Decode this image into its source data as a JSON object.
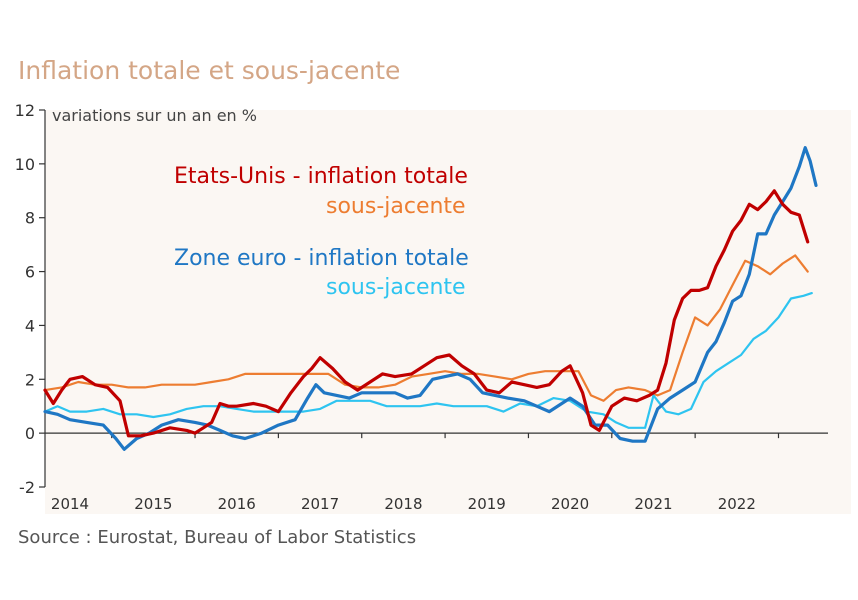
{
  "title": "Inflation totale et sous-jacente",
  "source": "Source : Eurostat, Bureau of Labor Statistics",
  "chart_data": {
    "type": "line",
    "ylabel": "variations sur un an en %",
    "ylim": [
      -2,
      12
    ],
    "yticks": [
      -2,
      0,
      2,
      4,
      6,
      8,
      10,
      12
    ],
    "xlim": [
      2013.7,
      2022.95
    ],
    "xticks": [
      {
        "label": "2014",
        "x": 2014.0
      },
      {
        "label": "2015",
        "x": 2015.0
      },
      {
        "label": "2016",
        "x": 2016.0
      },
      {
        "label": "2017",
        "x": 2017.0
      },
      {
        "label": "2018",
        "x": 2018.0
      },
      {
        "label": "2019",
        "x": 2019.0
      },
      {
        "label": "2020",
        "x": 2020.0
      },
      {
        "label": "2021",
        "x": 2021.0
      },
      {
        "label": "2022",
        "x": 2022.0
      }
    ],
    "legend": [
      {
        "text": "Etats-Unis - inflation totale",
        "color": "#c00000"
      },
      {
        "text": "sous-jacente",
        "color": "#ed7d31"
      },
      {
        "text": "Zone euro - inflation totale",
        "color": "#1f77c4"
      },
      {
        "text": "sous-jacente",
        "color": "#2ec4f0"
      }
    ],
    "series": [
      {
        "color": "#ed7d31",
        "width": 2.2,
        "points": [
          [
            2013.7,
            1.6
          ],
          [
            2013.9,
            1.7
          ],
          [
            2014.1,
            1.9
          ],
          [
            2014.3,
            1.8
          ],
          [
            2014.5,
            1.8
          ],
          [
            2014.7,
            1.7
          ],
          [
            2014.9,
            1.7
          ],
          [
            2015.1,
            1.8
          ],
          [
            2015.3,
            1.8
          ],
          [
            2015.5,
            1.8
          ],
          [
            2015.7,
            1.9
          ],
          [
            2015.9,
            2.0
          ],
          [
            2016.1,
            2.2
          ],
          [
            2016.3,
            2.2
          ],
          [
            2016.5,
            2.2
          ],
          [
            2016.7,
            2.2
          ],
          [
            2016.9,
            2.2
          ],
          [
            2017.1,
            2.2
          ],
          [
            2017.3,
            1.8
          ],
          [
            2017.5,
            1.7
          ],
          [
            2017.7,
            1.7
          ],
          [
            2017.9,
            1.8
          ],
          [
            2018.1,
            2.1
          ],
          [
            2018.3,
            2.2
          ],
          [
            2018.5,
            2.3
          ],
          [
            2018.7,
            2.2
          ],
          [
            2018.9,
            2.2
          ],
          [
            2019.1,
            2.1
          ],
          [
            2019.3,
            2.0
          ],
          [
            2019.5,
            2.2
          ],
          [
            2019.7,
            2.3
          ],
          [
            2019.9,
            2.3
          ],
          [
            2020.1,
            2.3
          ],
          [
            2020.25,
            1.4
          ],
          [
            2020.4,
            1.2
          ],
          [
            2020.55,
            1.6
          ],
          [
            2020.7,
            1.7
          ],
          [
            2020.9,
            1.6
          ],
          [
            2021.05,
            1.4
          ],
          [
            2021.2,
            1.6
          ],
          [
            2021.35,
            3.0
          ],
          [
            2021.5,
            4.3
          ],
          [
            2021.65,
            4.0
          ],
          [
            2021.8,
            4.6
          ],
          [
            2021.95,
            5.5
          ],
          [
            2022.1,
            6.4
          ],
          [
            2022.25,
            6.2
          ],
          [
            2022.4,
            5.9
          ],
          [
            2022.55,
            6.3
          ],
          [
            2022.7,
            6.6
          ],
          [
            2022.85,
            6.0
          ]
        ]
      },
      {
        "color": "#2ec4f0",
        "width": 2.2,
        "points": [
          [
            2013.7,
            0.8
          ],
          [
            2013.85,
            1.0
          ],
          [
            2014.0,
            0.8
          ],
          [
            2014.2,
            0.8
          ],
          [
            2014.4,
            0.9
          ],
          [
            2014.6,
            0.7
          ],
          [
            2014.8,
            0.7
          ],
          [
            2015.0,
            0.6
          ],
          [
            2015.2,
            0.7
          ],
          [
            2015.4,
            0.9
          ],
          [
            2015.6,
            1.0
          ],
          [
            2015.8,
            1.0
          ],
          [
            2016.0,
            0.9
          ],
          [
            2016.2,
            0.8
          ],
          [
            2016.4,
            0.8
          ],
          [
            2016.6,
            0.8
          ],
          [
            2016.8,
            0.8
          ],
          [
            2017.0,
            0.9
          ],
          [
            2017.2,
            1.2
          ],
          [
            2017.4,
            1.2
          ],
          [
            2017.6,
            1.2
          ],
          [
            2017.8,
            1.0
          ],
          [
            2018.0,
            1.0
          ],
          [
            2018.2,
            1.0
          ],
          [
            2018.4,
            1.1
          ],
          [
            2018.6,
            1.0
          ],
          [
            2018.8,
            1.0
          ],
          [
            2019.0,
            1.0
          ],
          [
            2019.2,
            0.8
          ],
          [
            2019.4,
            1.1
          ],
          [
            2019.6,
            1.0
          ],
          [
            2019.8,
            1.3
          ],
          [
            2020.0,
            1.2
          ],
          [
            2020.2,
            0.8
          ],
          [
            2020.4,
            0.7
          ],
          [
            2020.55,
            0.4
          ],
          [
            2020.7,
            0.2
          ],
          [
            2020.9,
            0.2
          ],
          [
            2021.0,
            1.4
          ],
          [
            2021.15,
            0.8
          ],
          [
            2021.3,
            0.7
          ],
          [
            2021.45,
            0.9
          ],
          [
            2021.6,
            1.9
          ],
          [
            2021.75,
            2.3
          ],
          [
            2021.9,
            2.6
          ],
          [
            2022.05,
            2.9
          ],
          [
            2022.2,
            3.5
          ],
          [
            2022.35,
            3.8
          ],
          [
            2022.5,
            4.3
          ],
          [
            2022.65,
            5.0
          ],
          [
            2022.8,
            5.1
          ],
          [
            2022.9,
            5.2
          ]
        ]
      },
      {
        "color": "#1f77c4",
        "width": 3.2,
        "points": [
          [
            2013.7,
            0.8
          ],
          [
            2013.85,
            0.7
          ],
          [
            2014.0,
            0.5
          ],
          [
            2014.2,
            0.4
          ],
          [
            2014.4,
            0.3
          ],
          [
            2014.55,
            -0.2
          ],
          [
            2014.65,
            -0.6
          ],
          [
            2014.8,
            -0.2
          ],
          [
            2014.95,
            0.0
          ],
          [
            2015.1,
            0.3
          ],
          [
            2015.3,
            0.5
          ],
          [
            2015.5,
            0.4
          ],
          [
            2015.65,
            0.3
          ],
          [
            2015.8,
            0.1
          ],
          [
            2015.95,
            -0.1
          ],
          [
            2016.1,
            -0.2
          ],
          [
            2016.3,
            0.0
          ],
          [
            2016.5,
            0.3
          ],
          [
            2016.7,
            0.5
          ],
          [
            2016.85,
            1.3
          ],
          [
            2016.95,
            1.8
          ],
          [
            2017.05,
            1.5
          ],
          [
            2017.2,
            1.4
          ],
          [
            2017.35,
            1.3
          ],
          [
            2017.5,
            1.5
          ],
          [
            2017.7,
            1.5
          ],
          [
            2017.9,
            1.5
          ],
          [
            2018.05,
            1.3
          ],
          [
            2018.2,
            1.4
          ],
          [
            2018.35,
            2.0
          ],
          [
            2018.5,
            2.1
          ],
          [
            2018.65,
            2.2
          ],
          [
            2018.8,
            2.0
          ],
          [
            2018.95,
            1.5
          ],
          [
            2019.1,
            1.4
          ],
          [
            2019.25,
            1.3
          ],
          [
            2019.45,
            1.2
          ],
          [
            2019.6,
            1.0
          ],
          [
            2019.75,
            0.8
          ],
          [
            2019.9,
            1.1
          ],
          [
            2020.0,
            1.3
          ],
          [
            2020.15,
            1.0
          ],
          [
            2020.3,
            0.3
          ],
          [
            2020.45,
            0.3
          ],
          [
            2020.6,
            -0.2
          ],
          [
            2020.75,
            -0.3
          ],
          [
            2020.9,
            -0.3
          ],
          [
            2021.05,
            0.9
          ],
          [
            2021.2,
            1.3
          ],
          [
            2021.35,
            1.6
          ],
          [
            2021.5,
            1.9
          ],
          [
            2021.65,
            3.0
          ],
          [
            2021.75,
            3.4
          ],
          [
            2021.85,
            4.1
          ],
          [
            2021.95,
            4.9
          ],
          [
            2022.05,
            5.1
          ],
          [
            2022.15,
            5.9
          ],
          [
            2022.25,
            7.4
          ],
          [
            2022.35,
            7.4
          ],
          [
            2022.45,
            8.1
          ],
          [
            2022.55,
            8.6
          ],
          [
            2022.65,
            9.1
          ],
          [
            2022.75,
            9.9
          ],
          [
            2022.82,
            10.6
          ],
          [
            2022.88,
            10.1
          ],
          [
            2022.95,
            9.2
          ]
        ]
      },
      {
        "color": "#c00000",
        "width": 3.2,
        "points": [
          [
            2013.7,
            1.6
          ],
          [
            2013.8,
            1.1
          ],
          [
            2013.9,
            1.6
          ],
          [
            2014.0,
            2.0
          ],
          [
            2014.15,
            2.1
          ],
          [
            2014.3,
            1.8
          ],
          [
            2014.45,
            1.7
          ],
          [
            2014.6,
            1.2
          ],
          [
            2014.7,
            -0.1
          ],
          [
            2014.85,
            -0.1
          ],
          [
            2015.0,
            0.0
          ],
          [
            2015.2,
            0.2
          ],
          [
            2015.4,
            0.1
          ],
          [
            2015.5,
            0.0
          ],
          [
            2015.6,
            0.2
          ],
          [
            2015.7,
            0.4
          ],
          [
            2015.8,
            1.1
          ],
          [
            2015.9,
            1.0
          ],
          [
            2016.0,
            1.0
          ],
          [
            2016.2,
            1.1
          ],
          [
            2016.35,
            1.0
          ],
          [
            2016.5,
            0.8
          ],
          [
            2016.65,
            1.5
          ],
          [
            2016.8,
            2.1
          ],
          [
            2016.9,
            2.4
          ],
          [
            2017.0,
            2.8
          ],
          [
            2017.15,
            2.4
          ],
          [
            2017.3,
            1.9
          ],
          [
            2017.45,
            1.6
          ],
          [
            2017.6,
            1.9
          ],
          [
            2017.75,
            2.2
          ],
          [
            2017.9,
            2.1
          ],
          [
            2018.1,
            2.2
          ],
          [
            2018.25,
            2.5
          ],
          [
            2018.4,
            2.8
          ],
          [
            2018.55,
            2.9
          ],
          [
            2018.7,
            2.5
          ],
          [
            2018.85,
            2.2
          ],
          [
            2019.0,
            1.6
          ],
          [
            2019.15,
            1.5
          ],
          [
            2019.3,
            1.9
          ],
          [
            2019.45,
            1.8
          ],
          [
            2019.6,
            1.7
          ],
          [
            2019.75,
            1.8
          ],
          [
            2019.9,
            2.3
          ],
          [
            2020.0,
            2.5
          ],
          [
            2020.15,
            1.5
          ],
          [
            2020.25,
            0.3
          ],
          [
            2020.35,
            0.1
          ],
          [
            2020.5,
            1.0
          ],
          [
            2020.65,
            1.3
          ],
          [
            2020.8,
            1.2
          ],
          [
            2020.95,
            1.4
          ],
          [
            2021.05,
            1.6
          ],
          [
            2021.15,
            2.6
          ],
          [
            2021.25,
            4.2
          ],
          [
            2021.35,
            5.0
          ],
          [
            2021.45,
            5.3
          ],
          [
            2021.55,
            5.3
          ],
          [
            2021.65,
            5.4
          ],
          [
            2021.75,
            6.2
          ],
          [
            2021.85,
            6.8
          ],
          [
            2021.95,
            7.5
          ],
          [
            2022.05,
            7.9
          ],
          [
            2022.15,
            8.5
          ],
          [
            2022.25,
            8.3
          ],
          [
            2022.35,
            8.6
          ],
          [
            2022.45,
            9.0
          ],
          [
            2022.55,
            8.5
          ],
          [
            2022.65,
            8.2
          ],
          [
            2022.75,
            8.1
          ],
          [
            2022.85,
            7.1
          ]
        ]
      }
    ]
  }
}
